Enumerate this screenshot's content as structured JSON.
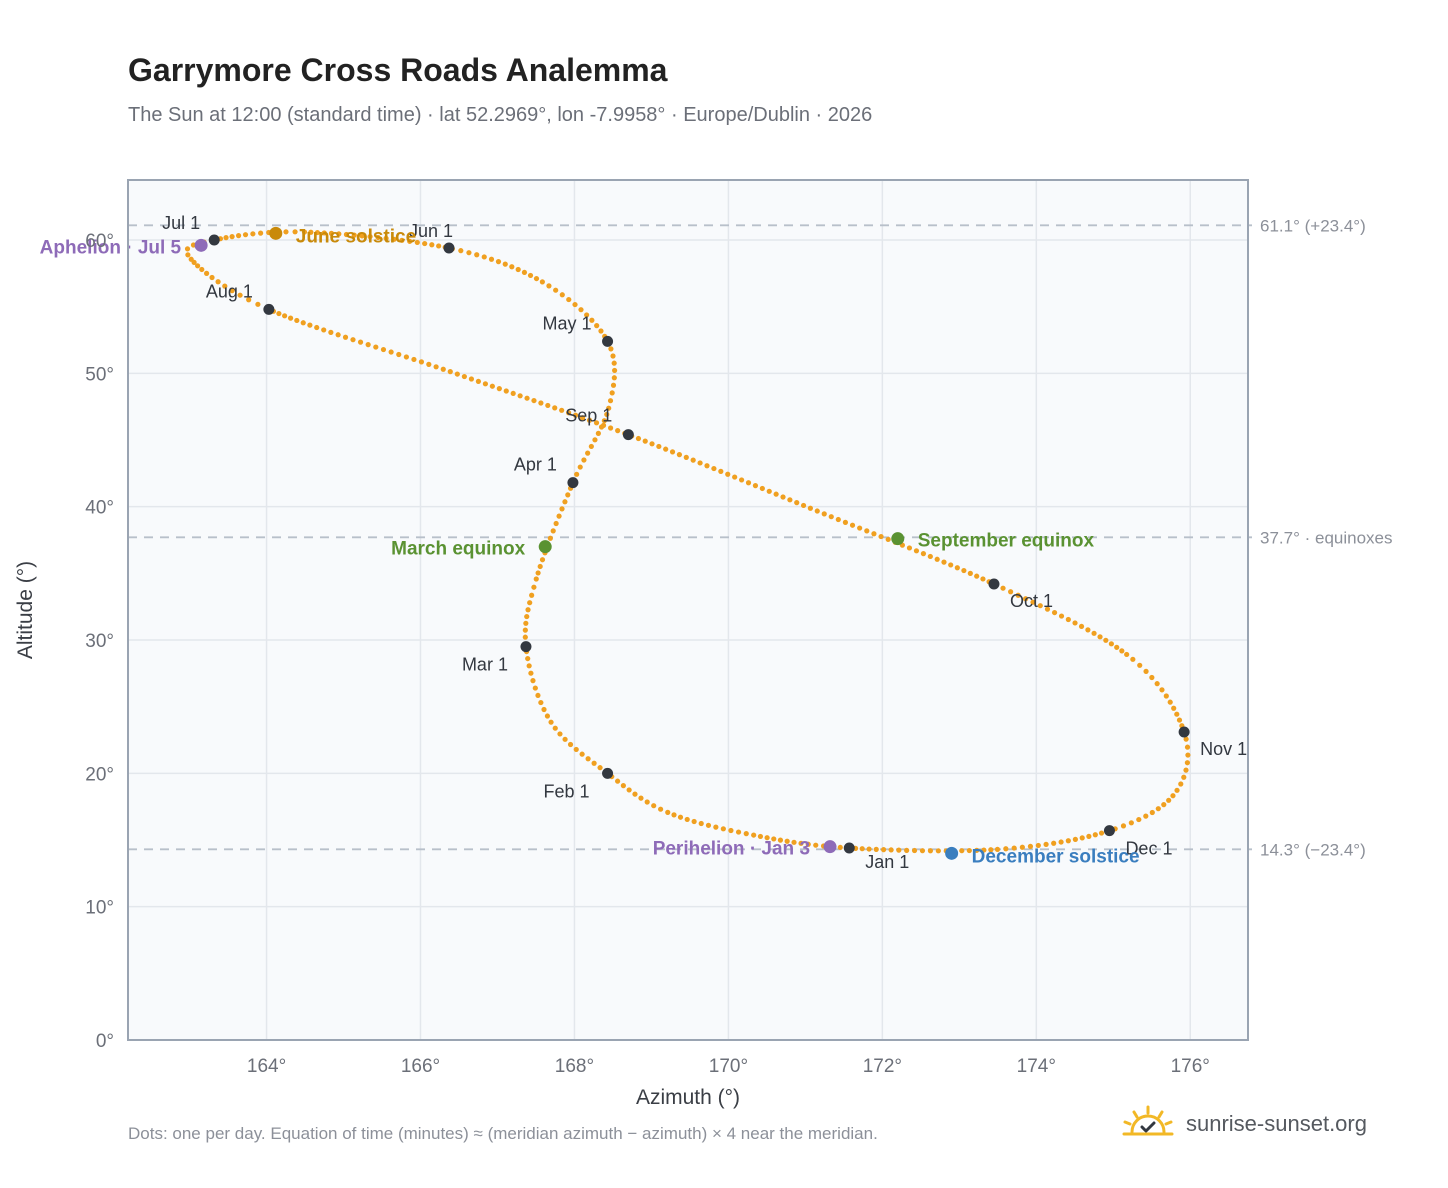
{
  "header": {
    "title": "Garrymore Cross Roads Analemma",
    "subtitle": "The Sun at 12:00 (standard time) · lat 52.2969°, lon -7.9958° · Europe/Dublin · 2026"
  },
  "footer": {
    "note": "Dots: one per day. Equation of time (minutes) ≈ (meridian azimuth − azimuth) × 4 near the meridian.",
    "brand": "sunrise-sunset.org",
    "brand_icon": "sun-check-icon"
  },
  "colors": {
    "curve": "#f0a020",
    "month_marker": "#333840",
    "june_solstice": "#c98a0a",
    "december_solstice": "#3a7ebf",
    "equinox": "#5a9232",
    "apsis": "#8e6bb8",
    "reference_line": "#b8c0ca",
    "plot_background": "#f8fafc",
    "grid": "#e3e7ec",
    "frame": "#9aa4b2",
    "brand_sun": "#f2b826"
  },
  "chart_data": {
    "type": "scatter",
    "xlabel": "Azimuth (°)",
    "ylabel": "Altitude (°)",
    "xlim": [
      162.2,
      176.75
    ],
    "ylim": [
      0,
      64.5
    ],
    "x_ticks": [
      164,
      166,
      168,
      170,
      172,
      174,
      176
    ],
    "x_tick_labels": [
      "164°",
      "166°",
      "168°",
      "170°",
      "172°",
      "174°",
      "176°"
    ],
    "y_ticks": [
      0,
      10,
      20,
      30,
      40,
      50,
      60
    ],
    "y_tick_labels": [
      "0°",
      "10°",
      "20°",
      "30°",
      "40°",
      "50°",
      "60°"
    ],
    "grid": true,
    "month_markers": [
      {
        "label": "Jan 1",
        "az": 171.57,
        "alt": 14.4
      },
      {
        "label": "Feb 1",
        "az": 168.43,
        "alt": 20.0
      },
      {
        "label": "Mar 1",
        "az": 167.37,
        "alt": 29.5
      },
      {
        "label": "Apr 1",
        "az": 167.98,
        "alt": 41.8
      },
      {
        "label": "May 1",
        "az": 168.43,
        "alt": 52.4
      },
      {
        "label": "Jun 1",
        "az": 166.37,
        "alt": 59.4
      },
      {
        "label": "Jul 1",
        "az": 163.32,
        "alt": 60.0
      },
      {
        "label": "Aug 1",
        "az": 164.03,
        "alt": 54.8
      },
      {
        "label": "Sep 1",
        "az": 168.7,
        "alt": 45.4
      },
      {
        "label": "Oct 1",
        "az": 173.45,
        "alt": 34.2
      },
      {
        "label": "Nov 1",
        "az": 175.92,
        "alt": 23.1
      },
      {
        "label": "Dec 1",
        "az": 174.95,
        "alt": 15.7
      }
    ],
    "events": [
      {
        "label": "June solstice",
        "az": 164.12,
        "alt": 60.5,
        "color_key": "june_solstice"
      },
      {
        "label": "December solstice",
        "az": 172.9,
        "alt": 14.0,
        "color_key": "december_solstice"
      },
      {
        "label": "March equinox",
        "az": 167.62,
        "alt": 37.0,
        "color_key": "equinox"
      },
      {
        "label": "September equinox",
        "az": 172.2,
        "alt": 37.6,
        "color_key": "equinox"
      },
      {
        "label": "Aphelion · Jul 5",
        "az": 163.15,
        "alt": 59.6,
        "color_key": "apsis"
      },
      {
        "label": "Perihelion · Jan 3",
        "az": 171.32,
        "alt": 14.5,
        "color_key": "apsis"
      }
    ],
    "reference_lines": [
      {
        "alt": 61.1,
        "label": "61.1° (+23.4°)"
      },
      {
        "alt": 37.7,
        "label": "37.7° · equinoxes"
      },
      {
        "alt": 14.3,
        "label": "14.3° (−23.4°)"
      }
    ],
    "path_knots": [
      [
        171.57,
        14.4
      ],
      [
        170.3,
        15.4
      ],
      [
        169.2,
        17.1
      ],
      [
        168.43,
        20.0
      ],
      [
        167.7,
        23.8
      ],
      [
        167.37,
        29.5
      ],
      [
        167.5,
        34.5
      ],
      [
        167.98,
        41.8
      ],
      [
        168.45,
        47.5
      ],
      [
        168.43,
        52.4
      ],
      [
        167.6,
        56.8
      ],
      [
        166.37,
        59.4
      ],
      [
        164.5,
        60.6
      ],
      [
        163.32,
        60.0
      ],
      [
        163.0,
        58.7
      ],
      [
        164.03,
        54.8
      ],
      [
        166.4,
        50.1
      ],
      [
        168.7,
        45.4
      ],
      [
        171.1,
        39.8
      ],
      [
        173.45,
        34.2
      ],
      [
        175.2,
        28.8
      ],
      [
        175.92,
        23.1
      ],
      [
        175.8,
        18.5
      ],
      [
        174.95,
        15.7
      ],
      [
        173.5,
        14.3
      ]
    ]
  }
}
